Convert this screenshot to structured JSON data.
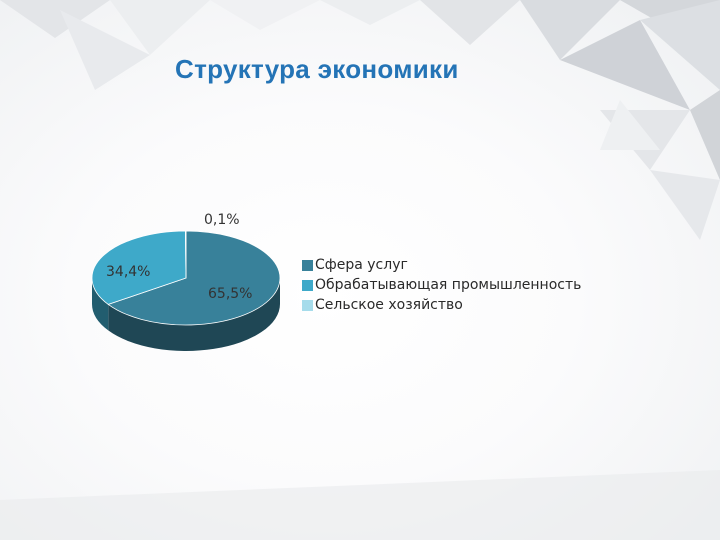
{
  "slide": {
    "title": "Структура экономики"
  },
  "chart_data": {
    "type": "pie",
    "categories": [
      "Сфера услуг",
      "Обрабатывающая промышленность",
      "Сельское хозяйство"
    ],
    "values": [
      65.5,
      34.4,
      0.1
    ],
    "labels": [
      "65,5%",
      "34,4%",
      "0,1%"
    ],
    "colors": [
      "#38819a",
      "#3ea9c9",
      "#a6dceb"
    ],
    "legend_position": "right"
  }
}
